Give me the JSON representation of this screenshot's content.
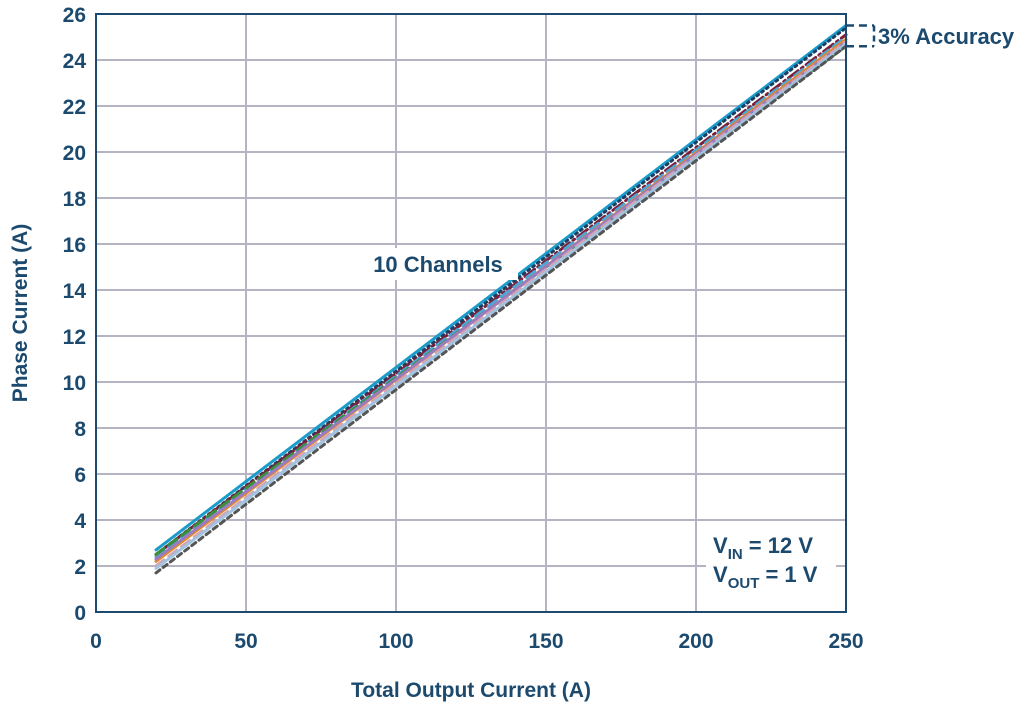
{
  "chart_data": {
    "type": "line",
    "xlabel": "Total Output Current (A)",
    "ylabel": "Phase Current (A)",
    "xlim": [
      0,
      250
    ],
    "ylim": [
      0,
      26
    ],
    "xticks": [
      0,
      50,
      100,
      150,
      200,
      250
    ],
    "yticks": [
      0,
      2,
      4,
      6,
      8,
      10,
      12,
      14,
      16,
      18,
      20,
      22,
      24,
      26
    ],
    "grid": true,
    "annotations": {
      "channels": "10 Channels",
      "accuracy": "3% Accuracy",
      "vin_prefix": "V",
      "vin_sub": "IN",
      "vin_value": " = 12 V",
      "vout_prefix": "V",
      "vout_sub": "OUT",
      "vout_value": " = 1 V"
    },
    "colors": {
      "axis_text": "#1c4a6e",
      "grid": "#b4b4c2",
      "frame": "#1c4a6e"
    },
    "series": [
      {
        "color": "#1a9bc9",
        "dash": "solid",
        "x": [
          20,
          250
        ],
        "y": [
          2.7,
          25.5
        ]
      },
      {
        "color": "#1c3f66",
        "dash": "dot",
        "x": [
          20,
          250
        ],
        "y": [
          2.5,
          25.4
        ]
      },
      {
        "color": "#7a1e3a",
        "dash": "dashdot",
        "x": [
          20,
          250
        ],
        "y": [
          2.5,
          25.1
        ]
      },
      {
        "color": "#4aa8d8",
        "dash": "dash",
        "x": [
          20,
          250
        ],
        "y": [
          2.4,
          25.0
        ]
      },
      {
        "color": "#3a8f3a",
        "dash": "dash",
        "x": [
          20,
          250
        ],
        "y": [
          2.5,
          24.6
        ]
      },
      {
        "color": "#e08a2a",
        "dash": "solid",
        "x": [
          20,
          250
        ],
        "y": [
          2.2,
          24.9
        ]
      },
      {
        "color": "#9b7bc0",
        "dash": "solid",
        "x": [
          20,
          250
        ],
        "y": [
          2.3,
          24.8
        ]
      },
      {
        "color": "#d9a0b0",
        "dash": "dash",
        "x": [
          20,
          250
        ],
        "y": [
          2.0,
          24.8
        ]
      },
      {
        "color": "#9fc3e0",
        "dash": "solid",
        "x": [
          20,
          250
        ],
        "y": [
          1.9,
          24.7
        ]
      },
      {
        "color": "#555555",
        "dash": "shortdash",
        "x": [
          20,
          250
        ],
        "y": [
          1.7,
          24.6
        ]
      }
    ]
  }
}
